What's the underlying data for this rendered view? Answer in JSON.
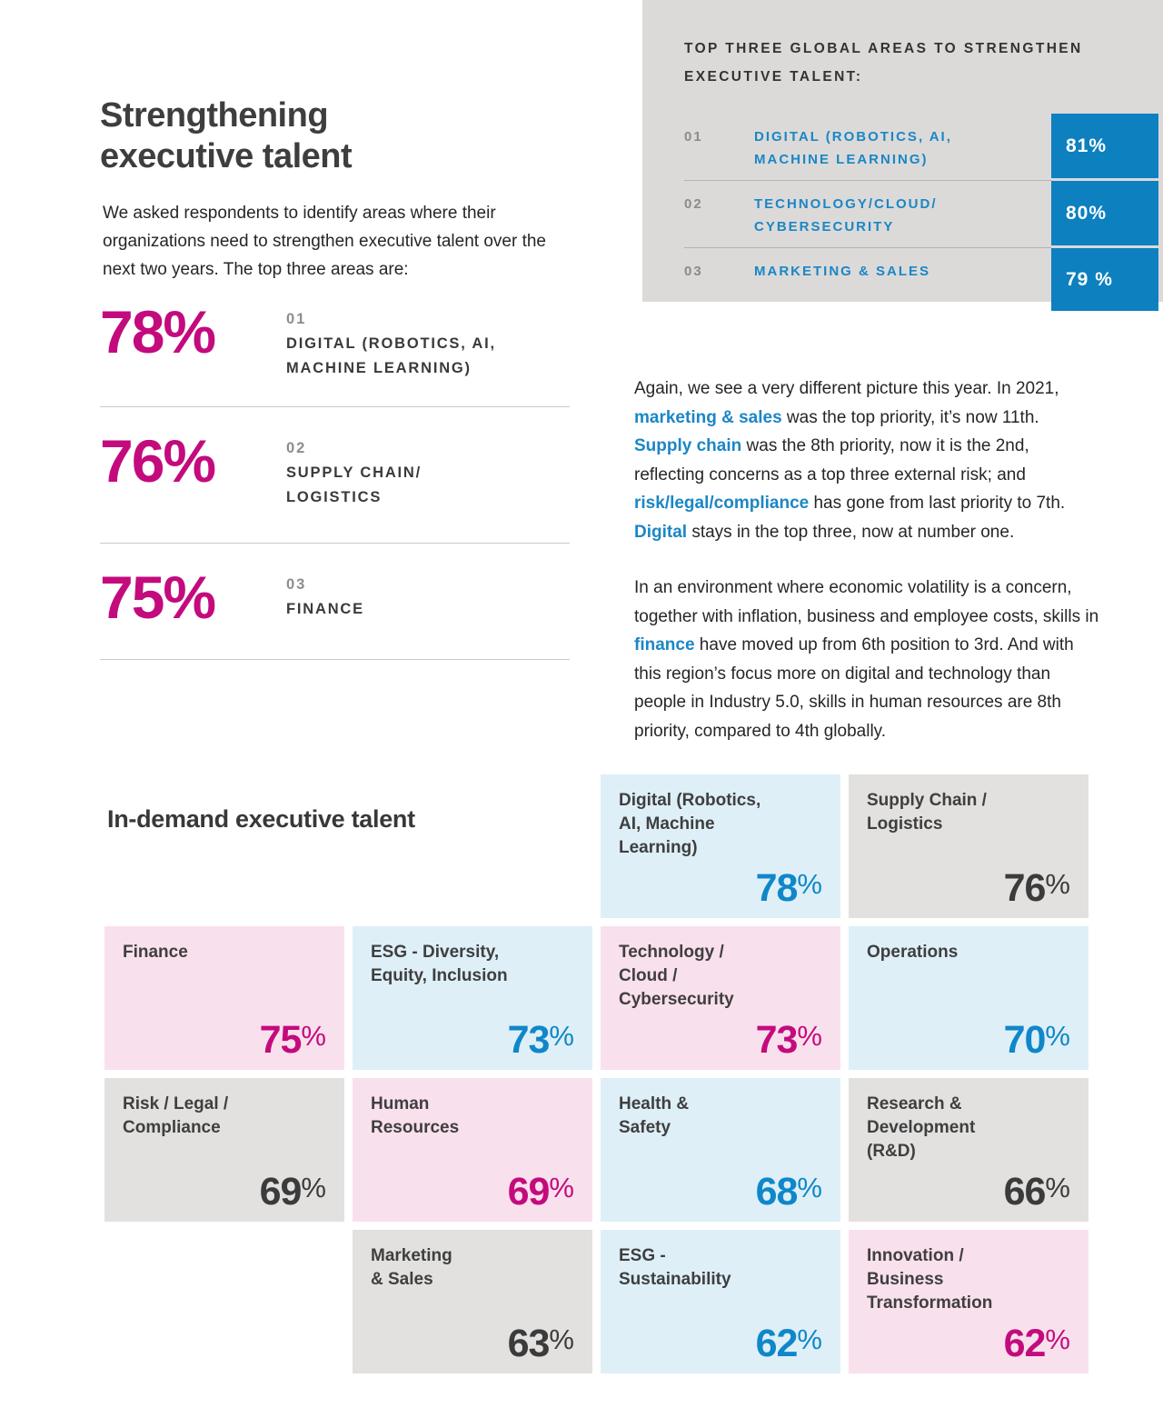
{
  "colors": {
    "magenta": "#c30b7d",
    "blue_accent": "#0f87c8",
    "blue_link": "#1b86c5",
    "blue_box": "#0d80c0",
    "tile_blue_bg": "#deeff8",
    "tile_pink_bg": "#f9e0ed",
    "tile_gray_bg": "#e2e1e0",
    "box_gray_bg": "#dbdad9",
    "text_dark": "#3a3a3a"
  },
  "header": {
    "title": "Strengthening\nexecutive talent",
    "intro": "We asked respondents to identify areas where their organizations need to strengthen executive talent over the next two years. The top three areas are:"
  },
  "stats": [
    {
      "value": "78%",
      "rank": "01",
      "label": "DIGITAL (ROBOTICS, AI,\nMACHINE LEARNING)"
    },
    {
      "value": "76%",
      "rank": "02",
      "label": "SUPPLY CHAIN/\nLOGISTICS"
    },
    {
      "value": "75%",
      "rank": "03",
      "label": "FINANCE"
    }
  ],
  "global_box": {
    "heading": "TOP THREE GLOBAL AREAS TO STRENGTHEN EXECUTIVE TALENT:",
    "rows": [
      {
        "rank": "01",
        "label": "DIGITAL (ROBOTICS, AI,\nMACHINE LEARNING)",
        "pct": "81%"
      },
      {
        "rank": "02",
        "label": "TECHNOLOGY/CLOUD/\nCYBERSECURITY",
        "pct": "80%"
      },
      {
        "rank": "03",
        "label": "MARKETING & SALES",
        "pct": "79 %"
      }
    ]
  },
  "paragraphs": {
    "p1": [
      {
        "t": "Again, we see a very different picture this year. In 2021, "
      },
      {
        "t": "marketing & sales",
        "h": true
      },
      {
        "t": " was the top priority, it’s now 11th. "
      },
      {
        "t": "Supply chain",
        "h": true
      },
      {
        "t": " was the 8th priority, now it is the 2nd, reflecting concerns as a top three external risk; and "
      },
      {
        "t": "risk/legal/compliance",
        "h": true
      },
      {
        "t": " has gone from last priority to 7th. "
      },
      {
        "t": "Digital",
        "h": true
      },
      {
        "t": " stays in the top three, now at number one."
      }
    ],
    "p2": [
      {
        "t": "In an environment where economic volatility is a concern, together with inflation, business and employee costs, skills in "
      },
      {
        "t": "finance",
        "h": true
      },
      {
        "t": " have moved up from 6th position to 3rd. And with this region’s focus more on digital and technology than people in Industry 5.0, skills in human resources are 8th priority, compared to 4th globally."
      }
    ]
  },
  "grid": {
    "heading": "In-demand executive talent",
    "tiles": [
      {
        "label": "Digital (Robotics,\nAI, Machine\nLearning)",
        "num": "78",
        "suffix": "%"
      },
      {
        "label": "Supply Chain /\nLogistics",
        "num": "76",
        "suffix": "%"
      },
      {
        "label": "Finance",
        "num": "75",
        "suffix": "%"
      },
      {
        "label": "ESG - Diversity,\nEquity, Inclusion",
        "num": "73",
        "suffix": "%"
      },
      {
        "label": "Technology /\nCloud /\nCybersecurity",
        "num": "73",
        "suffix": "%"
      },
      {
        "label": "Operations",
        "num": "70",
        "suffix": "%"
      },
      {
        "label": "Risk / Legal /\nCompliance",
        "num": "69",
        "suffix": "%"
      },
      {
        "label": "Human\nResources",
        "num": "69",
        "suffix": "%"
      },
      {
        "label": "Health &\nSafety",
        "num": "68",
        "suffix": "%"
      },
      {
        "label": "Research &\nDevelopment\n(R&D)",
        "num": "66",
        "suffix": "%"
      },
      {
        "label": "Marketing\n& Sales",
        "num": "63",
        "suffix": "%"
      },
      {
        "label": "ESG -\nSustainability",
        "num": "62",
        "suffix": "%"
      },
      {
        "label": "Innovation /\nBusiness\nTransformation",
        "num": "62",
        "suffix": "%"
      }
    ]
  }
}
